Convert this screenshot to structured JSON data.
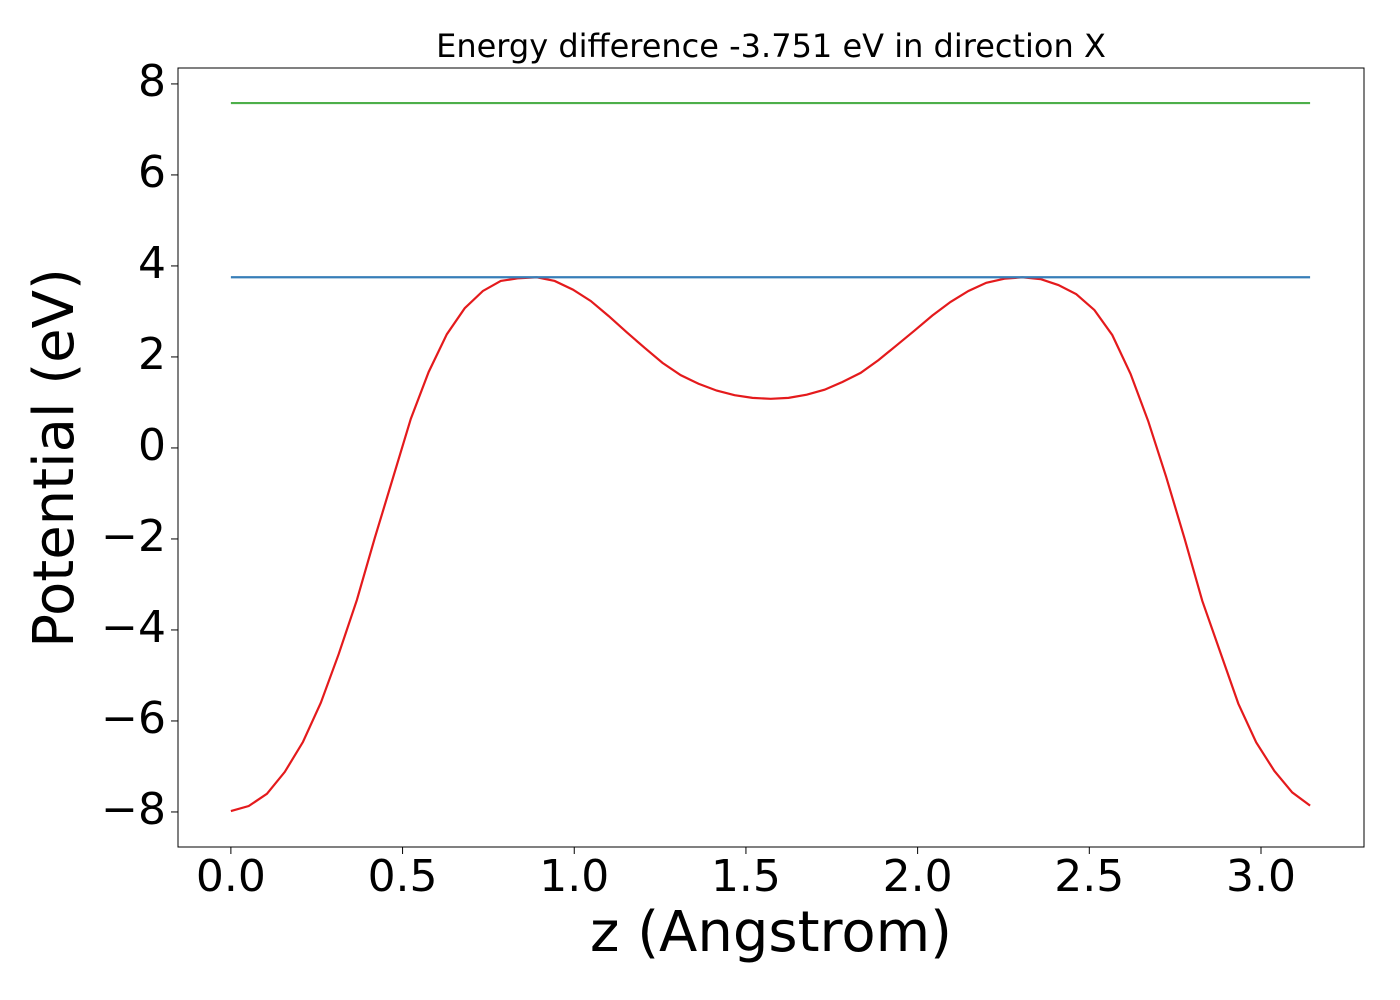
{
  "chart_data": {
    "type": "line",
    "title": "Energy difference -3.751 eV in direction X",
    "xlabel": "z (Angstrom)",
    "ylabel": "Potential (eV)",
    "xlim": [
      -0.154,
      3.3
    ],
    "ylim": [
      -8.77,
      8.35
    ],
    "xticks": [
      {
        "value": 0,
        "label": "0.0"
      },
      0.5,
      {
        "value": 1,
        "label": "1.0"
      },
      1.5,
      {
        "value": 2,
        "label": "2.0"
      },
      2.5,
      {
        "value": 3,
        "label": "3.0"
      }
    ],
    "yticks": [
      {
        "value": -8,
        "label": "−8"
      },
      {
        "value": -6,
        "label": "−6"
      },
      {
        "value": -4,
        "label": "−4"
      },
      {
        "value": -2,
        "label": "−2"
      },
      0,
      2,
      4,
      6,
      8
    ],
    "grid": false,
    "series": [
      {
        "color": "#e41a1c",
        "x": [
          0,
          0.052,
          0.105,
          0.157,
          0.21,
          0.262,
          0.314,
          0.367,
          0.419,
          0.472,
          0.524,
          0.576,
          0.629,
          0.681,
          0.734,
          0.786,
          0.838,
          0.891,
          0.943,
          0.996,
          1.048,
          1.1,
          1.153,
          1.205,
          1.257,
          1.31,
          1.362,
          1.415,
          1.467,
          1.519,
          1.572,
          1.624,
          1.677,
          1.729,
          1.781,
          1.834,
          1.886,
          1.938,
          1.991,
          2.043,
          2.096,
          2.148,
          2.2,
          2.253,
          2.305,
          2.358,
          2.41,
          2.462,
          2.515,
          2.567,
          2.62,
          2.672,
          2.724,
          2.777,
          2.829,
          2.882,
          2.934,
          2.986,
          3.039,
          3.091,
          3.143
        ],
        "values": [
          -7.98,
          -7.87,
          -7.6,
          -7.12,
          -6.46,
          -5.6,
          -4.53,
          -3.34,
          -1.98,
          -0.66,
          0.64,
          1.67,
          2.5,
          3.07,
          3.45,
          3.67,
          3.73,
          3.75,
          3.67,
          3.48,
          3.23,
          2.9,
          2.54,
          2.2,
          1.87,
          1.6,
          1.41,
          1.26,
          1.16,
          1.1,
          1.08,
          1.1,
          1.17,
          1.28,
          1.45,
          1.65,
          1.93,
          2.25,
          2.58,
          2.91,
          3.21,
          3.45,
          3.63,
          3.72,
          3.75,
          3.71,
          3.58,
          3.38,
          3.03,
          2.48,
          1.63,
          0.58,
          -0.64,
          -1.98,
          -3.36,
          -4.5,
          -5.62,
          -6.47,
          -7.1,
          -7.57,
          -7.86
        ]
      },
      {
        "color": "#377eb8",
        "x": [
          0,
          3.143
        ],
        "values": [
          3.751,
          3.751
        ]
      },
      {
        "color": "#4daf4a",
        "x": [
          0,
          3.143
        ],
        "values": [
          7.58,
          7.58
        ]
      }
    ]
  }
}
